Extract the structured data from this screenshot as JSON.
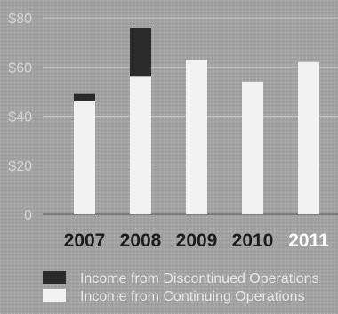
{
  "chart_data": {
    "type": "bar",
    "stacked": true,
    "categories": [
      "2007",
      "2008",
      "2009",
      "2010",
      "2011"
    ],
    "highlight_category": "2011",
    "series": [
      {
        "name": "Income from Continuing Operations",
        "values": [
          46,
          56,
          63,
          54,
          62
        ],
        "color": "#f2f2f2"
      },
      {
        "name": "Income from Discontinued Operations",
        "values": [
          3,
          20,
          0,
          0,
          0
        ],
        "color": "#2b2b2b"
      }
    ],
    "yticks": [
      "0",
      "$20",
      "$40",
      "$60",
      "$80"
    ],
    "ytick_values": [
      0,
      20,
      40,
      60,
      80
    ],
    "ylim": [
      0,
      80
    ],
    "legend_order": [
      1,
      0
    ],
    "legend_position": "bottom-left",
    "grid": true,
    "title": "",
    "xlabel": "",
    "ylabel": ""
  }
}
